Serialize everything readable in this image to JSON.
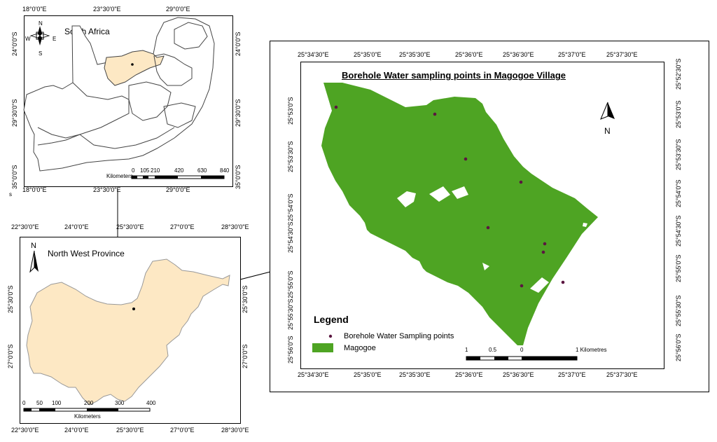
{
  "south_africa": {
    "title": "South Africa",
    "top_ticks": [
      "18°0'0\"E",
      "23°30'0\"E",
      "29°0'0\"E"
    ],
    "bottom_ticks": [
      "18°0'0\"E",
      "23°30'0\"E",
      "29°0'0\"E"
    ],
    "left_ticks": [
      "24°0'0\"S",
      "29°30'0\"S",
      "35°0'0\"S"
    ],
    "right_ticks": [
      "24°0'0\"S",
      "29°30'0\"S",
      "35°0'0\"S"
    ],
    "scale_values": [
      "0",
      "105",
      "210",
      "420",
      "630",
      "840"
    ],
    "scale_unit": "Kilometers",
    "compass": {
      "n": "N",
      "s": "S",
      "e": "E",
      "w": "W"
    },
    "corner_mark": "s"
  },
  "north_west": {
    "title": "North West Province",
    "north": "N",
    "top_ticks": [
      "22°30'0\"E",
      "24°0'0\"E",
      "25°30'0\"E",
      "27°0'0\"E",
      "28°30'0\"E"
    ],
    "bottom_ticks": [
      "22°30'0\"E",
      "24°0'0\"E",
      "25°30'0\"E",
      "27°0'0\"E",
      "28°30'0\"E"
    ],
    "left_ticks": [
      "25°30'0\"S",
      "27°0'0\"S"
    ],
    "right_ticks": [
      "25°30'0\"S",
      "27°0'0\"S"
    ],
    "scale_values": [
      "0",
      "50",
      "100",
      "200",
      "300",
      "400"
    ],
    "scale_unit": "Kilometers"
  },
  "magogoe": {
    "title": "Borehole Water sampling points in Magogoe Village",
    "north": "N",
    "top_ticks": [
      "25°34'30\"E",
      "25°35'0\"E",
      "25°35'30\"E",
      "25°36'0\"E",
      "25°36'30\"E",
      "25°37'0\"E",
      "25°37'30\"E"
    ],
    "bottom_ticks": [
      "25°34'30\"E",
      "25°35'0\"E",
      "25°35'30\"E",
      "25°36'0\"E",
      "25°36'30\"E",
      "25°37'0\"E",
      "25°37'30\"E"
    ],
    "left_ticks": [
      "25°53'0\"S",
      "25°53'30\"S",
      "25°54'0\"S",
      "25°54'30\"S",
      "25°55'0\"S",
      "25°55'30\"S",
      "25°56'0\"S"
    ],
    "right_ticks": [
      "25°52'30\"S",
      "25°53'0\"S",
      "25°53'30\"S",
      "25°54'0\"S",
      "25°54'30\"S",
      "25°55'0\"S",
      "25°55'30\"S",
      "25°56'0\"S"
    ],
    "legend": {
      "title": "Legend",
      "points_label": "Borehole Water Sampling points",
      "area_label": "Magogoe"
    },
    "scale_values": [
      "1",
      "0.5",
      "0"
    ],
    "scale_unit": "1 Kilometres",
    "colors": {
      "area": "#4ea423",
      "point": "#5b1640",
      "province": "#fde8c4"
    }
  }
}
